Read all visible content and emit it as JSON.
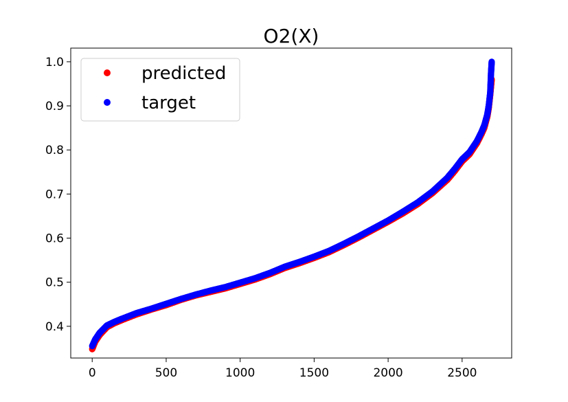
{
  "chart_data": {
    "type": "scatter",
    "title": "O2(X)",
    "xlabel": "",
    "ylabel": "",
    "xlim": [
      -145,
      2835
    ],
    "ylim": [
      0.328,
      1.031
    ],
    "x_ticks": [
      0,
      500,
      1000,
      1500,
      2000,
      2500
    ],
    "y_ticks": [
      0.4,
      0.5,
      0.6,
      0.7,
      0.8,
      0.9,
      1.0
    ],
    "x_tick_labels": [
      "0",
      "500",
      "1000",
      "1500",
      "2000",
      "2500"
    ],
    "y_tick_labels": [
      "0.4",
      "0.5",
      "0.6",
      "0.7",
      "0.8",
      "0.9",
      "1.0"
    ],
    "grid": false,
    "legend_position": "upper-left",
    "series": [
      {
        "name": "predicted",
        "color": "#ff0000",
        "x": [
          0,
          20,
          50,
          100,
          150,
          200,
          300,
          400,
          500,
          600,
          700,
          800,
          900,
          1000,
          1100,
          1200,
          1300,
          1400,
          1500,
          1600,
          1700,
          1800,
          1900,
          2000,
          2100,
          2200,
          2300,
          2400,
          2450,
          2500,
          2550,
          2600,
          2630,
          2650,
          2670,
          2680,
          2690,
          2700
        ],
        "values": [
          0.348,
          0.365,
          0.38,
          0.398,
          0.407,
          0.414,
          0.427,
          0.438,
          0.448,
          0.46,
          0.47,
          0.478,
          0.486,
          0.496,
          0.506,
          0.518,
          0.532,
          0.543,
          0.555,
          0.568,
          0.584,
          0.601,
          0.619,
          0.637,
          0.656,
          0.677,
          0.702,
          0.732,
          0.752,
          0.774,
          0.79,
          0.815,
          0.835,
          0.85,
          0.875,
          0.895,
          0.925,
          0.96
        ]
      },
      {
        "name": "target",
        "color": "#0000ff",
        "x": [
          0,
          20,
          50,
          100,
          150,
          200,
          300,
          400,
          500,
          600,
          700,
          800,
          900,
          1000,
          1100,
          1200,
          1300,
          1400,
          1500,
          1600,
          1700,
          1800,
          1900,
          2000,
          2100,
          2200,
          2300,
          2400,
          2450,
          2500,
          2550,
          2600,
          2630,
          2650,
          2670,
          2680,
          2690,
          2695,
          2700
        ],
        "values": [
          0.355,
          0.37,
          0.385,
          0.402,
          0.41,
          0.417,
          0.43,
          0.44,
          0.451,
          0.462,
          0.472,
          0.481,
          0.489,
          0.499,
          0.509,
          0.521,
          0.535,
          0.546,
          0.558,
          0.571,
          0.587,
          0.604,
          0.622,
          0.64,
          0.66,
          0.681,
          0.706,
          0.737,
          0.757,
          0.779,
          0.795,
          0.82,
          0.84,
          0.856,
          0.88,
          0.9,
          0.93,
          0.972,
          1.0
        ]
      }
    ]
  }
}
